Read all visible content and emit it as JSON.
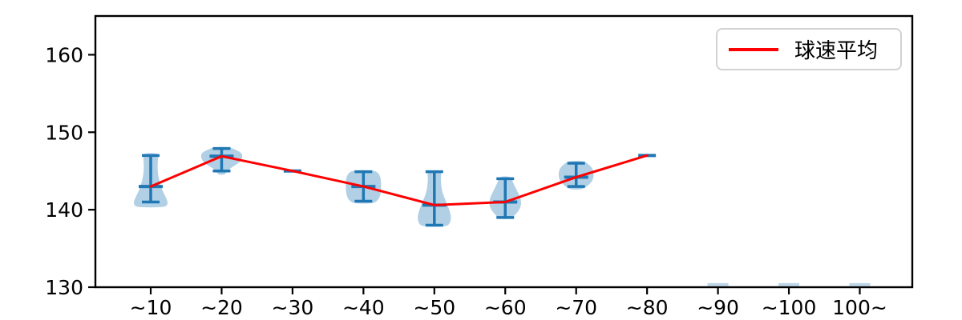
{
  "chart_data": {
    "type": "violin+line",
    "title": "",
    "xlabel": "",
    "ylabel": "",
    "categories": [
      "∼10",
      "∼20",
      "∼30",
      "∼40",
      "∼50",
      "∼60",
      "∼70",
      "∼80",
      "∼90",
      "∼100",
      "100∼"
    ],
    "ylim": [
      130,
      165
    ],
    "yticks": [
      130,
      140,
      150,
      160
    ],
    "grid": false,
    "legend": {
      "position": "upper right",
      "entries": [
        {
          "label": "球速平均",
          "color": "#ff0000",
          "marker": "line"
        }
      ]
    },
    "series": [
      {
        "name": "球速平均",
        "type": "line",
        "color": "#ff0000",
        "categories": [
          "∼10",
          "∼20",
          "∼30",
          "∼40",
          "∼50",
          "∼60",
          "∼70",
          "∼80"
        ],
        "values": [
          143.0,
          146.9,
          145.0,
          143.0,
          140.6,
          141.0,
          144.2,
          147.0
        ]
      }
    ],
    "violins": [
      {
        "category": "∼10",
        "mean": 143.0,
        "min": 141.0,
        "max": 147.0,
        "profile": [
          [
            147.3,
            10
          ],
          [
            146.6,
            9
          ],
          [
            145.6,
            8.5
          ],
          [
            144.6,
            9
          ],
          [
            143.6,
            11
          ],
          [
            142.6,
            14
          ],
          [
            141.8,
            18
          ],
          [
            141.1,
            21
          ],
          [
            140.6,
            21
          ],
          [
            140.3,
            16
          ]
        ]
      },
      {
        "category": "∼20",
        "mean": 146.9,
        "min": 145.0,
        "max": 147.9,
        "profile": [
          [
            148.1,
            9
          ],
          [
            147.8,
            16
          ],
          [
            147.4,
            24
          ],
          [
            147.0,
            26
          ],
          [
            146.5,
            25
          ],
          [
            146.0,
            21
          ],
          [
            145.5,
            13
          ],
          [
            145.0,
            7
          ],
          [
            144.5,
            4
          ]
        ]
      },
      {
        "category": "∼30",
        "mean": 145.0
      },
      {
        "category": "∼40",
        "mean": 143.0,
        "min": 141.1,
        "max": 144.9,
        "profile": [
          [
            145.1,
            12
          ],
          [
            144.8,
            18
          ],
          [
            144.3,
            21
          ],
          [
            143.6,
            22
          ],
          [
            142.6,
            22
          ],
          [
            141.8,
            21
          ],
          [
            141.2,
            18
          ],
          [
            140.8,
            12
          ]
        ]
      },
      {
        "category": "∼50",
        "mean": 140.6,
        "min": 138.0,
        "max": 144.9,
        "profile": [
          [
            145.0,
            9
          ],
          [
            144.2,
            8
          ],
          [
            143.2,
            8.5
          ],
          [
            142.2,
            10
          ],
          [
            141.2,
            14
          ],
          [
            140.2,
            18
          ],
          [
            139.2,
            21
          ],
          [
            138.3,
            20
          ],
          [
            137.8,
            15
          ]
        ]
      },
      {
        "category": "∼60",
        "mean": 141.0,
        "min": 139.0,
        "max": 144.0,
        "profile": [
          [
            144.3,
            7
          ],
          [
            143.7,
            9
          ],
          [
            143.0,
            12
          ],
          [
            142.2,
            16
          ],
          [
            141.4,
            19.5
          ],
          [
            140.6,
            20
          ],
          [
            139.9,
            17
          ],
          [
            139.3,
            12
          ],
          [
            138.8,
            7
          ]
        ]
      },
      {
        "category": "∼70",
        "mean": 144.2,
        "min": 143.0,
        "max": 146.0,
        "profile": [
          [
            146.3,
            9
          ],
          [
            145.9,
            15
          ],
          [
            145.4,
            20
          ],
          [
            144.8,
            22
          ],
          [
            144.0,
            21.5
          ],
          [
            143.4,
            18
          ],
          [
            142.9,
            12
          ],
          [
            142.6,
            7
          ]
        ]
      },
      {
        "category": "∼80",
        "mean": 147.0
      },
      {
        "category": "∼90",
        "clipped": true,
        "value": 130.2
      },
      {
        "category": "∼100",
        "clipped": true,
        "value": 130.2
      },
      {
        "category": "100∼",
        "clipped": true,
        "value": 130.2
      }
    ],
    "colors": {
      "mean_line": "#ff0000",
      "violin_line": "#1f77b4",
      "violin_fill": "#bcd6e8",
      "violin_fill_opacity": 0.35,
      "axis": "#000000",
      "legend_border": "#d2d2d2"
    }
  }
}
